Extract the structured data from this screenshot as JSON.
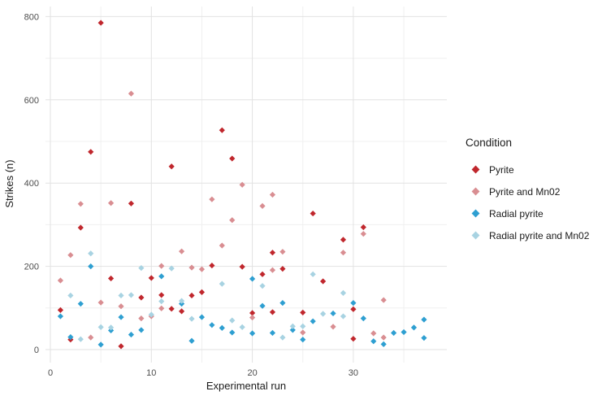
{
  "figure": {
    "x_axis": {
      "title": "Experimental run",
      "major_ticks": [
        0,
        10,
        20,
        30
      ],
      "minor_ticks": [
        5,
        15,
        25,
        35
      ],
      "range": [
        0,
        38
      ]
    },
    "y_axis": {
      "title": "Strikes (n)",
      "major_ticks": [
        0,
        200,
        400,
        600,
        800
      ],
      "minor_ticks": [
        100,
        300,
        500,
        700
      ],
      "range": [
        0,
        800
      ]
    },
    "legend": {
      "title": "Condition",
      "items": [
        {
          "label": "Pyrite",
          "color": "#c0272d"
        },
        {
          "label": "Pyrite and Mn02",
          "color": "#d98e92"
        },
        {
          "label": "Radial pyrite",
          "color": "#2e9fd1"
        },
        {
          "label": "Radial pyrite and Mn02",
          "color": "#a8d3e2"
        }
      ]
    },
    "colors": {
      "grid_major": "#e2e2e2",
      "grid_minor": "#f0f0f0",
      "tick_label": "#4d4d4d",
      "axis_title": "#1a1a1a",
      "background": "#ffffff"
    }
  },
  "chart_data": {
    "type": "scatter",
    "title": "",
    "xlabel": "Experimental run",
    "ylabel": "Strikes (n)",
    "xlim": [
      0,
      39
    ],
    "ylim": [
      0,
      800
    ],
    "grid": true,
    "legend_position": "right",
    "legend_title": "Condition",
    "marker": "diamond",
    "series": [
      {
        "name": "Pyrite",
        "color": "#c0272d",
        "points": [
          [
            1,
            95
          ],
          [
            2,
            24
          ],
          [
            3,
            293
          ],
          [
            4,
            475
          ],
          [
            5,
            785
          ],
          [
            6,
            171
          ],
          [
            7,
            8
          ],
          [
            8,
            351
          ],
          [
            9,
            125
          ],
          [
            10,
            172
          ],
          [
            11,
            131
          ],
          [
            12,
            440
          ],
          [
            12,
            98
          ],
          [
            13,
            92
          ],
          [
            14,
            130
          ],
          [
            15,
            138
          ],
          [
            16,
            202
          ],
          [
            17,
            527
          ],
          [
            18,
            459
          ],
          [
            19,
            199
          ],
          [
            20,
            88
          ],
          [
            21,
            181
          ],
          [
            22,
            233
          ],
          [
            22,
            90
          ],
          [
            23,
            194
          ],
          [
            25,
            89
          ],
          [
            26,
            327
          ],
          [
            27,
            164
          ],
          [
            29,
            264
          ],
          [
            30,
            97
          ],
          [
            30,
            26
          ],
          [
            31,
            294
          ]
        ]
      },
      {
        "name": "Pyrite and Mn02",
        "color": "#d98e92",
        "points": [
          [
            1,
            166
          ],
          [
            2,
            227
          ],
          [
            3,
            350
          ],
          [
            4,
            29
          ],
          [
            5,
            113
          ],
          [
            6,
            352
          ],
          [
            7,
            104
          ],
          [
            8,
            615
          ],
          [
            9,
            75
          ],
          [
            10,
            80
          ],
          [
            11,
            201
          ],
          [
            11,
            99
          ],
          [
            13,
            236
          ],
          [
            14,
            197
          ],
          [
            15,
            193
          ],
          [
            16,
            361
          ],
          [
            17,
            250
          ],
          [
            18,
            311
          ],
          [
            19,
            396
          ],
          [
            20,
            77
          ],
          [
            21,
            345
          ],
          [
            22,
            372
          ],
          [
            22,
            191
          ],
          [
            23,
            235
          ],
          [
            25,
            41
          ],
          [
            28,
            55
          ],
          [
            29,
            233
          ],
          [
            31,
            278
          ],
          [
            32,
            39
          ],
          [
            33,
            119
          ],
          [
            33,
            29
          ]
        ]
      },
      {
        "name": "Radial pyrite",
        "color": "#2e9fd1",
        "points": [
          [
            1,
            80
          ],
          [
            2,
            30
          ],
          [
            3,
            110
          ],
          [
            4,
            200
          ],
          [
            5,
            12
          ],
          [
            6,
            46
          ],
          [
            7,
            78
          ],
          [
            8,
            36
          ],
          [
            9,
            47
          ],
          [
            11,
            176
          ],
          [
            13,
            110
          ],
          [
            14,
            21
          ],
          [
            15,
            78
          ],
          [
            16,
            59
          ],
          [
            17,
            52
          ],
          [
            18,
            41
          ],
          [
            20,
            170
          ],
          [
            20,
            39
          ],
          [
            21,
            105
          ],
          [
            22,
            40
          ],
          [
            23,
            112
          ],
          [
            24,
            47
          ],
          [
            25,
            24
          ],
          [
            26,
            68
          ],
          [
            28,
            87
          ],
          [
            30,
            112
          ],
          [
            31,
            75
          ],
          [
            32,
            20
          ],
          [
            33,
            13
          ],
          [
            34,
            40
          ],
          [
            35,
            42
          ],
          [
            36,
            53
          ],
          [
            37,
            72
          ],
          [
            37,
            28
          ]
        ]
      },
      {
        "name": "Radial pyrite and Mn02",
        "color": "#a8d3e2",
        "points": [
          [
            2,
            130
          ],
          [
            3,
            25
          ],
          [
            4,
            231
          ],
          [
            5,
            54
          ],
          [
            6,
            53
          ],
          [
            7,
            130
          ],
          [
            8,
            131
          ],
          [
            9,
            196
          ],
          [
            10,
            84
          ],
          [
            11,
            116
          ],
          [
            12,
            195
          ],
          [
            13,
            117
          ],
          [
            14,
            74
          ],
          [
            17,
            158
          ],
          [
            18,
            70
          ],
          [
            19,
            54
          ],
          [
            21,
            153
          ],
          [
            23,
            29
          ],
          [
            24,
            56
          ],
          [
            25,
            56
          ],
          [
            26,
            181
          ],
          [
            27,
            86
          ],
          [
            29,
            136
          ],
          [
            29,
            80
          ]
        ]
      }
    ]
  }
}
